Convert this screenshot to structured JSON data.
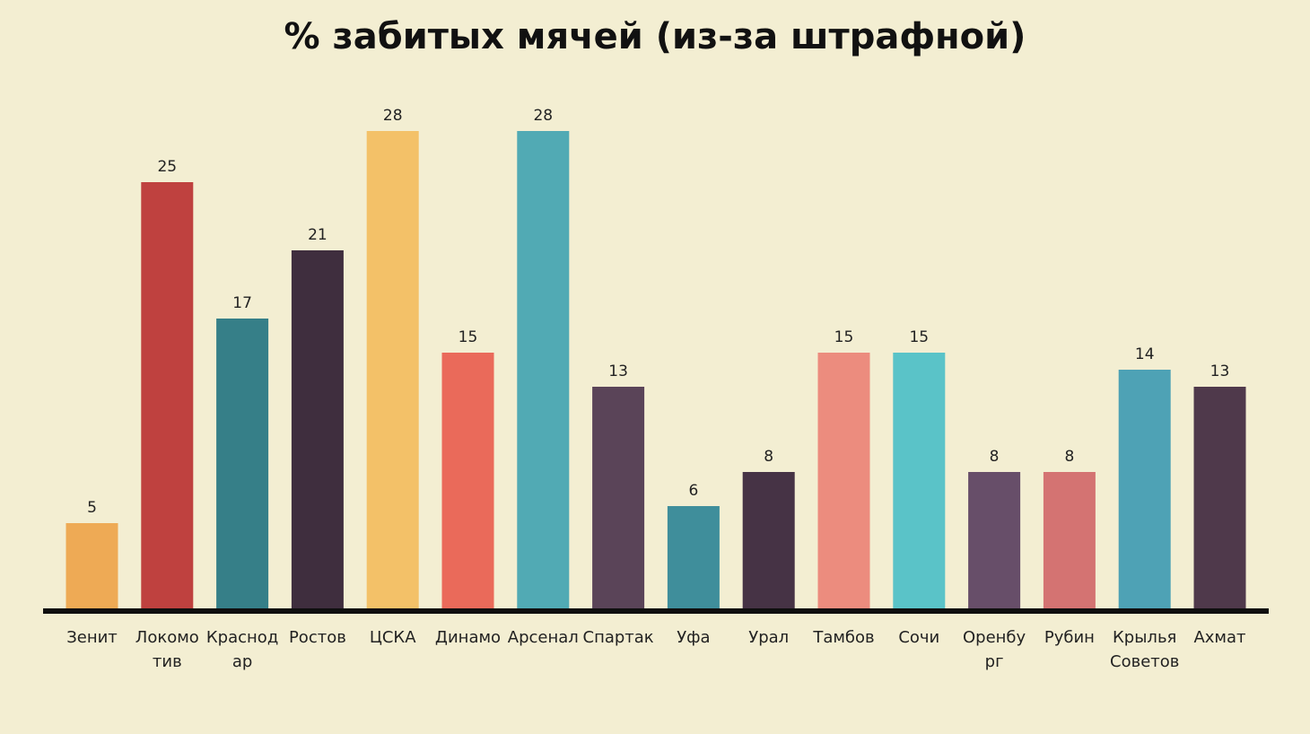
{
  "chart_data": {
    "type": "bar",
    "title": "% забитых мячей (из-за штрафной)",
    "xlabel": "",
    "ylabel": "",
    "ylim": [
      0,
      28
    ],
    "grid": false,
    "categories": [
      "Зенит",
      "Локомотив",
      "Краснодар",
      "Ростов",
      "ЦСКА",
      "Динамо",
      "Арсенал",
      "Спартак",
      "Уфа",
      "Урал",
      "Тамбов",
      "Сочи",
      "Оренбург",
      "Рубин",
      "Крылья Советов",
      "Ахмат"
    ],
    "category_label_lines": [
      [
        "Зенит"
      ],
      [
        "Локомо",
        "тив"
      ],
      [
        "Краснод",
        "ар"
      ],
      [
        "Ростов"
      ],
      [
        "ЦСКА"
      ],
      [
        "Динамо"
      ],
      [
        "Арсенал"
      ],
      [
        "Спартак"
      ],
      [
        "Уфа"
      ],
      [
        "Урал"
      ],
      [
        "Тамбов"
      ],
      [
        "Сочи"
      ],
      [
        "Оренбу",
        "рг"
      ],
      [
        "Рубин"
      ],
      [
        "Крылья",
        "Советов"
      ],
      [
        "Ахмат"
      ]
    ],
    "values": [
      5,
      25,
      17,
      21,
      28,
      15,
      28,
      13,
      6,
      8,
      15,
      15,
      8,
      8,
      14,
      13
    ],
    "colors": [
      "#eeaa55",
      "#bf413f",
      "#367f88",
      "#3f2e3e",
      "#f3c168",
      "#ea6a5a",
      "#51aab4",
      "#5a4458",
      "#3f8e9b",
      "#463345",
      "#ec8c7e",
      "#5ac3c8",
      "#674e69",
      "#d47372",
      "#4ea2b5",
      "#4f394b"
    ]
  }
}
